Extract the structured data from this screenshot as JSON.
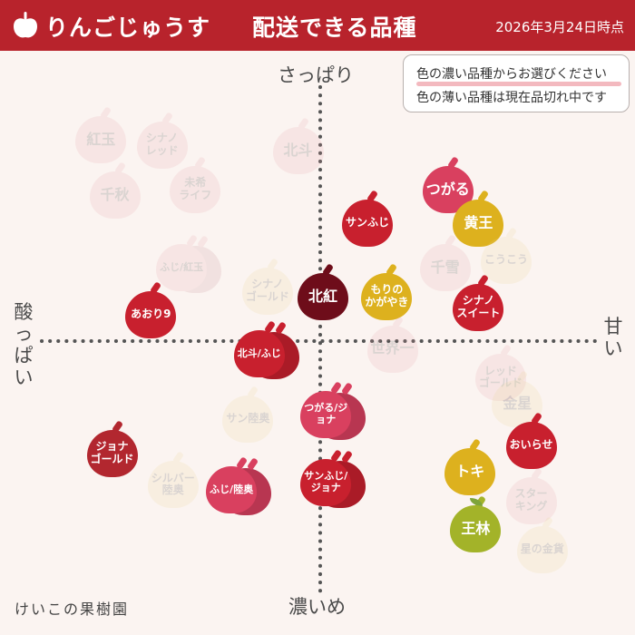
{
  "header": {
    "app_title": "りんごじゅうす",
    "page_heading": "配送できる品種",
    "date": "2026年3月24日時点"
  },
  "axes": {
    "top": "さっぱり",
    "bottom": "濃いめ",
    "left": "酸っぱい",
    "right": "甘い"
  },
  "legend": {
    "available": "色の濃い品種からお選びください",
    "sold_out": "色の薄い品種は現在品切れ中です"
  },
  "watermark": "けいこの果樹園",
  "colors": {
    "header": "#b8232c",
    "background": "#fbf4f1",
    "crimson": "#c8202e",
    "pink": "#d9405f",
    "red": "#b2272f",
    "dark": "#6e0d1a",
    "yellow": "#ddb11e",
    "green": "#a3b329",
    "faded_red": "#e39aa2",
    "faded_yellow": "#ead48d",
    "leaf": "#7ea43b"
  },
  "chart_data": {
    "type": "scatter",
    "x_axis": {
      "min": -1,
      "max": 1,
      "negative": "酸っぱい",
      "positive": "甘い"
    },
    "y_axis": {
      "min": -1,
      "max": 1,
      "negative": "濃いめ",
      "positive": "さっぱり"
    },
    "varieties": [
      {
        "label": "紅玉",
        "x": -0.79,
        "y": 0.77,
        "available": false,
        "color": "faded_red"
      },
      {
        "label": "シナノ レッド",
        "x": -0.57,
        "y": 0.75,
        "available": false,
        "color": "faded_red"
      },
      {
        "label": "北斗",
        "x": -0.08,
        "y": 0.73,
        "available": false,
        "color": "faded_red"
      },
      {
        "label": "千秋",
        "x": -0.74,
        "y": 0.56,
        "available": false,
        "color": "faded_red"
      },
      {
        "label": "未希 ライフ",
        "x": -0.45,
        "y": 0.58,
        "available": false,
        "color": "faded_red"
      },
      {
        "label": "ふじ/紅玉",
        "x": -0.48,
        "y": 0.28,
        "available": false,
        "color": "faded_red",
        "double": true
      },
      {
        "label": "シナノ ゴールド",
        "x": -0.19,
        "y": 0.19,
        "available": false,
        "color": "faded_yellow"
      },
      {
        "label": "あおり9",
        "x": -0.61,
        "y": 0.1,
        "available": true,
        "color": "crimson"
      },
      {
        "label": "北紅",
        "x": 0.01,
        "y": 0.17,
        "available": true,
        "color": "dark"
      },
      {
        "label": "サンふじ",
        "x": 0.17,
        "y": 0.45,
        "available": true,
        "color": "crimson"
      },
      {
        "label": "もりの かがやき",
        "x": 0.24,
        "y": 0.17,
        "available": true,
        "color": "yellow"
      },
      {
        "label": "つがる",
        "x": 0.46,
        "y": 0.58,
        "available": true,
        "color": "pink"
      },
      {
        "label": "黄王",
        "x": 0.57,
        "y": 0.45,
        "available": true,
        "color": "yellow"
      },
      {
        "label": "千雪",
        "x": 0.45,
        "y": 0.28,
        "available": false,
        "color": "faded_red"
      },
      {
        "label": "こうこう",
        "x": 0.67,
        "y": 0.31,
        "available": false,
        "color": "faded_yellow"
      },
      {
        "label": "シナノ スイート",
        "x": 0.57,
        "y": 0.13,
        "available": true,
        "color": "crimson"
      },
      {
        "label": "北斗/ふじ",
        "x": -0.2,
        "y": -0.05,
        "available": true,
        "color": "crimson",
        "double": true
      },
      {
        "label": "世界一",
        "x": 0.26,
        "y": -0.03,
        "available": false,
        "color": "faded_red"
      },
      {
        "label": "レッド ゴールド",
        "x": 0.65,
        "y": -0.14,
        "available": false,
        "color": "faded_red"
      },
      {
        "label": "金星",
        "x": 0.71,
        "y": -0.24,
        "available": false,
        "color": "faded_yellow"
      },
      {
        "label": "サン陸奥",
        "x": -0.26,
        "y": -0.3,
        "available": false,
        "color": "faded_yellow"
      },
      {
        "label": "つがる/ジョナ",
        "x": 0.04,
        "y": -0.28,
        "available": true,
        "color": "pink",
        "double": true
      },
      {
        "label": "ジョナ ゴールド",
        "x": -0.75,
        "y": -0.43,
        "available": true,
        "color": "red"
      },
      {
        "label": "シルバー 陸奥",
        "x": -0.53,
        "y": -0.55,
        "available": false,
        "color": "faded_yellow"
      },
      {
        "label": "ふじ/陸奥",
        "x": -0.3,
        "y": -0.57,
        "available": true,
        "color": "pink",
        "double": true
      },
      {
        "label": "サンふじ/ ジョナ",
        "x": 0.04,
        "y": -0.54,
        "available": true,
        "color": "crimson",
        "double": true
      },
      {
        "label": "おいらせ",
        "x": 0.76,
        "y": -0.4,
        "available": true,
        "color": "crimson"
      },
      {
        "label": "トキ",
        "x": 0.54,
        "y": -0.5,
        "available": true,
        "color": "yellow"
      },
      {
        "label": "スター キング",
        "x": 0.76,
        "y": -0.61,
        "available": false,
        "color": "faded_red"
      },
      {
        "label": "王林",
        "x": 0.56,
        "y": -0.72,
        "available": true,
        "color": "green"
      },
      {
        "label": "星の金貨",
        "x": 0.8,
        "y": -0.8,
        "available": false,
        "color": "faded_yellow"
      }
    ]
  }
}
